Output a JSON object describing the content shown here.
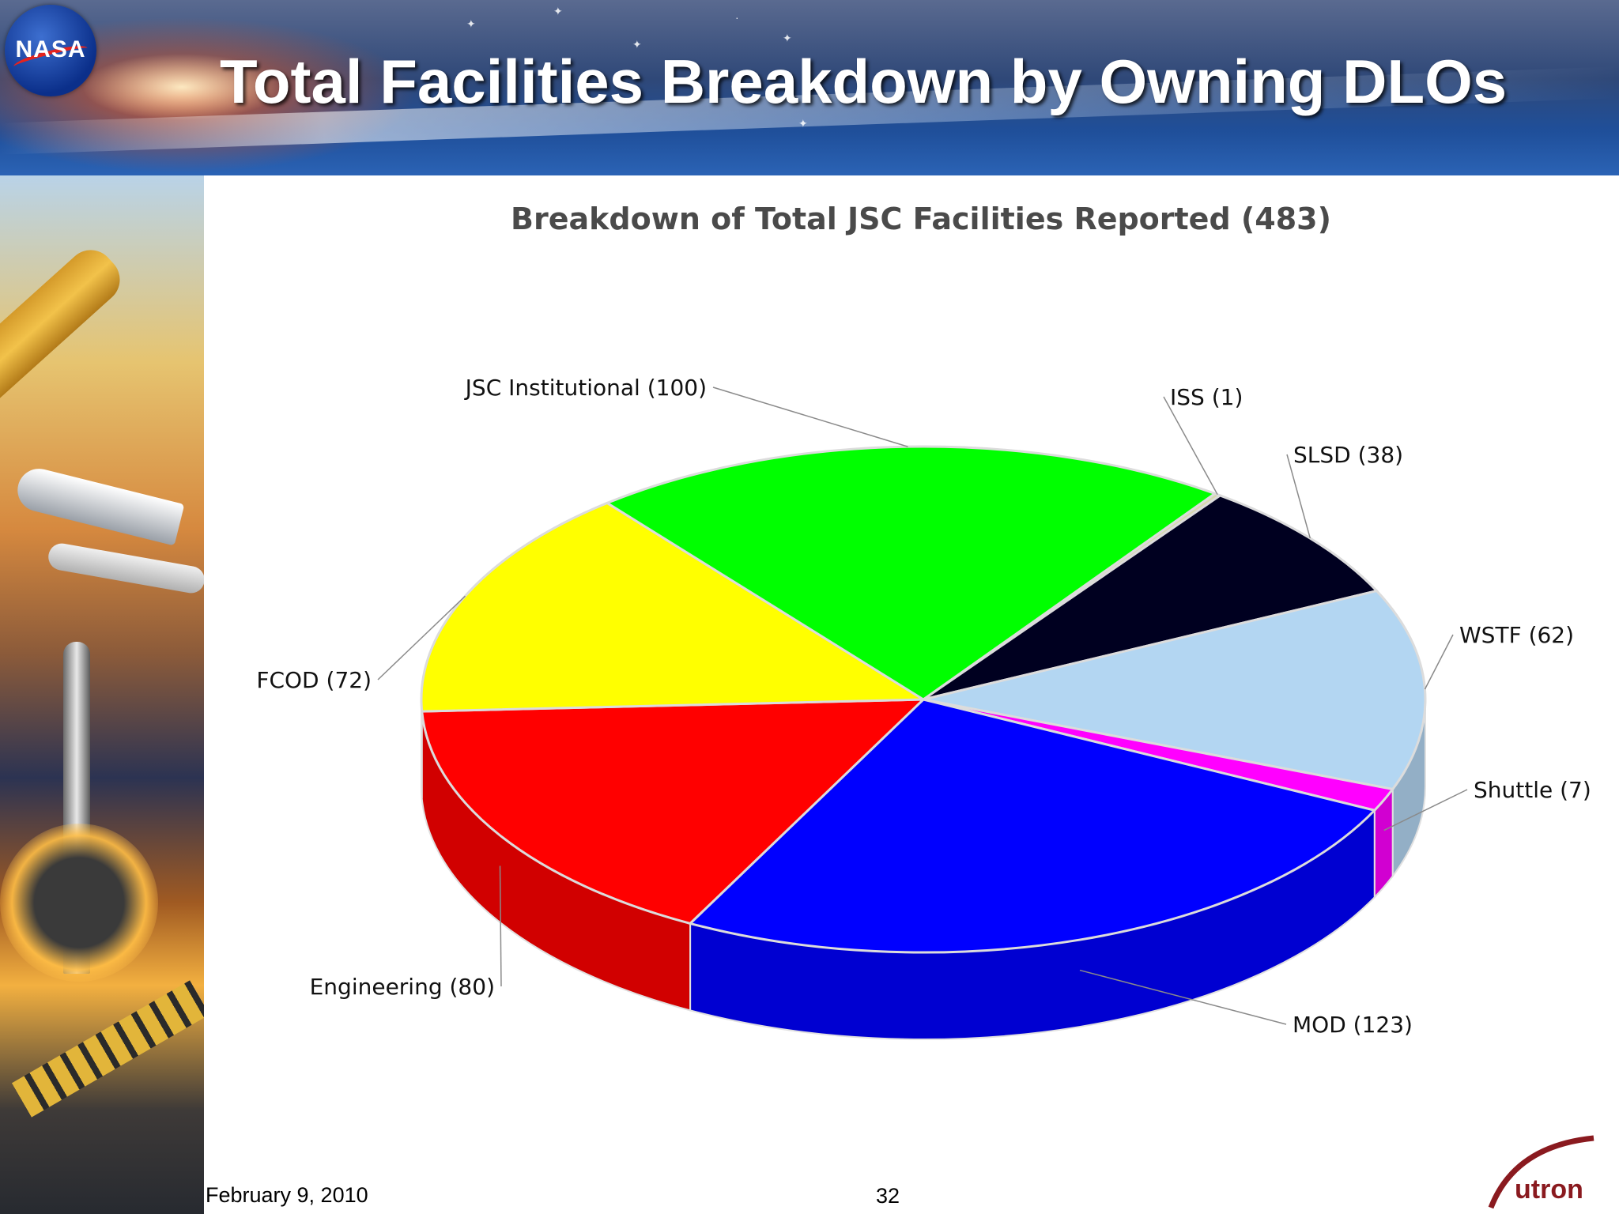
{
  "slide": {
    "title": "Total Facilities Breakdown by Owning DLOs",
    "logo_text": "NASA",
    "date": "February 9, 2010",
    "page_number": "32",
    "company_logo_text": "utron"
  },
  "chart_data": {
    "type": "pie",
    "title": "Breakdown of Total JSC Facilities Reported (483)",
    "slices": [
      {
        "label": "ISS (1)",
        "value": 1,
        "color": "#d8d8b0"
      },
      {
        "label": "SLSD (38)",
        "value": 38,
        "color": "#000020"
      },
      {
        "label": "WSTF (62)",
        "value": 62,
        "color": "#b3d6f2"
      },
      {
        "label": "Shuttle (7)",
        "value": 7,
        "color": "#ff00ff"
      },
      {
        "label": "MOD (123)",
        "value": 123,
        "color": "#0000ff"
      },
      {
        "label": "Engineering (80)",
        "value": 80,
        "color": "#ff0000"
      },
      {
        "label": "FCOD (72)",
        "value": 72,
        "color": "#ffff00"
      },
      {
        "label": "JSC Institutional (100)",
        "value": 100,
        "color": "#00ff00"
      }
    ],
    "legend": "none",
    "style": "3d"
  }
}
